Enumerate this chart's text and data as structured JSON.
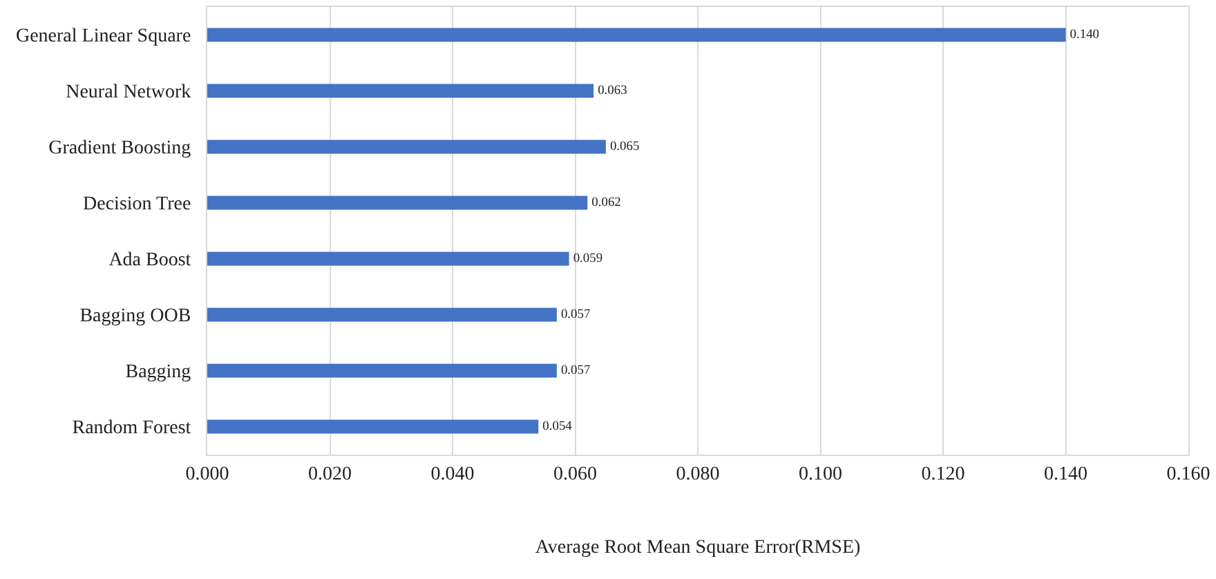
{
  "chart_data": {
    "type": "bar",
    "orientation": "horizontal",
    "categories": [
      "General Linear Square",
      "Neural Network",
      "Gradient Boosting",
      "Decision Tree",
      "Ada Boost",
      "Bagging OOB",
      "Bagging",
      "Random Forest"
    ],
    "values": [
      0.14,
      0.063,
      0.065,
      0.062,
      0.059,
      0.057,
      0.057,
      0.054
    ],
    "value_labels": [
      "0.140",
      "0.063",
      "0.065",
      "0.062",
      "0.059",
      "0.057",
      "0.057",
      "0.054"
    ],
    "color": "#4472c4",
    "xlabel": "Average Root Mean Square Error(RMSE)",
    "xlim": [
      0,
      0.16
    ],
    "xticks": [
      {
        "value": 0,
        "label": "0.000"
      },
      {
        "value": 0.02,
        "label": "0.020"
      },
      {
        "value": 0.04,
        "label": "0.040"
      },
      {
        "value": 0.06,
        "label": "0.060"
      },
      {
        "value": 0.08,
        "label": "0.080"
      },
      {
        "value": 0.1,
        "label": "0.100"
      },
      {
        "value": 0.12,
        "label": "0.120"
      },
      {
        "value": 0.14,
        "label": "0.140"
      },
      {
        "value": 0.16,
        "label": "0.160"
      }
    ],
    "grid": "x",
    "legend": false
  }
}
